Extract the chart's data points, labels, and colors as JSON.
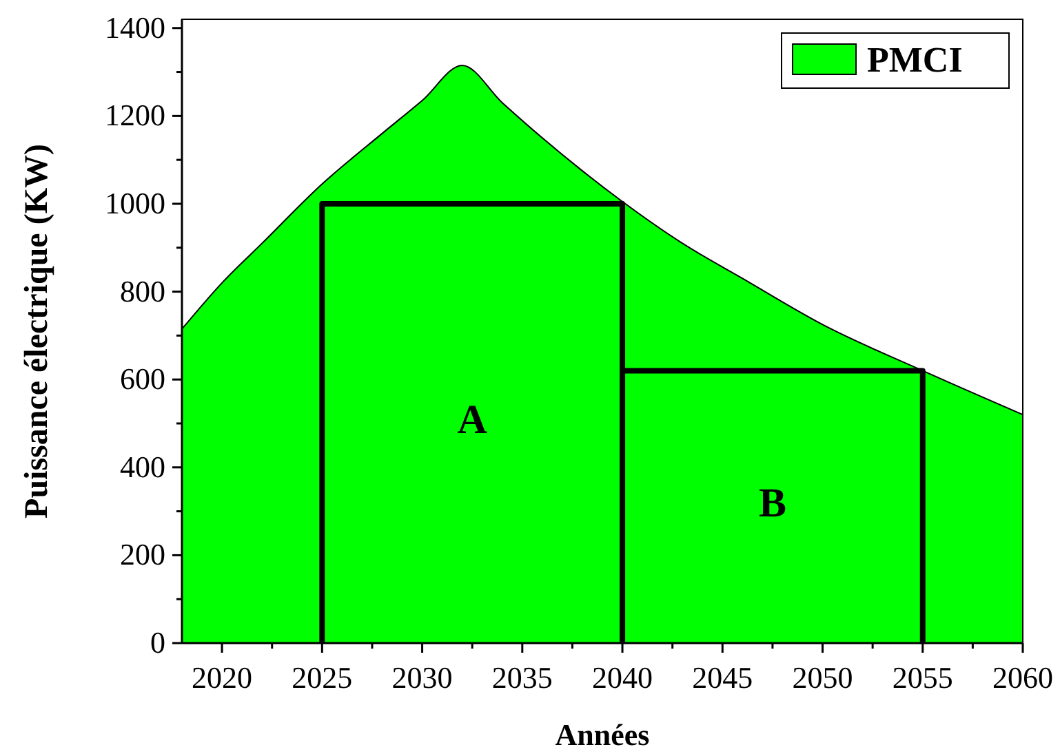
{
  "chart_data": {
    "type": "area",
    "xlabel": "Années",
    "ylabel": "Puissance électrique (KW)",
    "xlim": [
      2018,
      2060
    ],
    "ylim": [
      0,
      1420
    ],
    "xticks": [
      2020,
      {
        "value": 2022.5,
        "label": null
      },
      2025,
      {
        "value": 2027.5,
        "label": null
      },
      2030,
      {
        "value": 2032.5,
        "label": null
      },
      2035,
      {
        "value": 2037.5,
        "label": null
      },
      2040,
      {
        "value": 2042.5,
        "label": null
      },
      2045,
      {
        "value": 2047.5,
        "label": null
      },
      2050,
      {
        "value": 2052.5,
        "label": null
      },
      2055,
      {
        "value": 2057.5,
        "label": null
      },
      2060
    ],
    "yticks": [
      0,
      {
        "value": 100,
        "label": null
      },
      200,
      {
        "value": 300,
        "label": null
      },
      400,
      {
        "value": 500,
        "label": null
      },
      600,
      {
        "value": 700,
        "label": null
      },
      800,
      {
        "value": 900,
        "label": null
      },
      1000,
      {
        "value": 1100,
        "label": null
      },
      1200,
      {
        "value": 1300,
        "label": null
      },
      1400
    ],
    "series": [
      {
        "name": "PMCI",
        "color": "#00ff00",
        "x": [
          2018,
          2020,
          2022,
          2025,
          2028,
          2030,
          2032,
          2034,
          2036,
          2038,
          2040,
          2043,
          2046,
          2050,
          2055,
          2060
        ],
        "values": [
          715,
          820,
          910,
          1045,
          1160,
          1235,
          1315,
          1230,
          1150,
          1075,
          1005,
          910,
          830,
          725,
          620,
          520
        ]
      },
      {
        "type": "line",
        "color": "#000000",
        "x": [
          2025,
          2025,
          2040,
          2040
        ],
        "values": [
          0,
          1000,
          1000,
          0
        ]
      },
      {
        "type": "line",
        "color": "#000000",
        "x": [
          2040,
          2040,
          2055,
          2055
        ],
        "values": [
          0,
          620,
          620,
          0
        ]
      }
    ],
    "annotations": [
      "A",
      "B"
    ],
    "legend": "top right",
    "grid": false
  }
}
